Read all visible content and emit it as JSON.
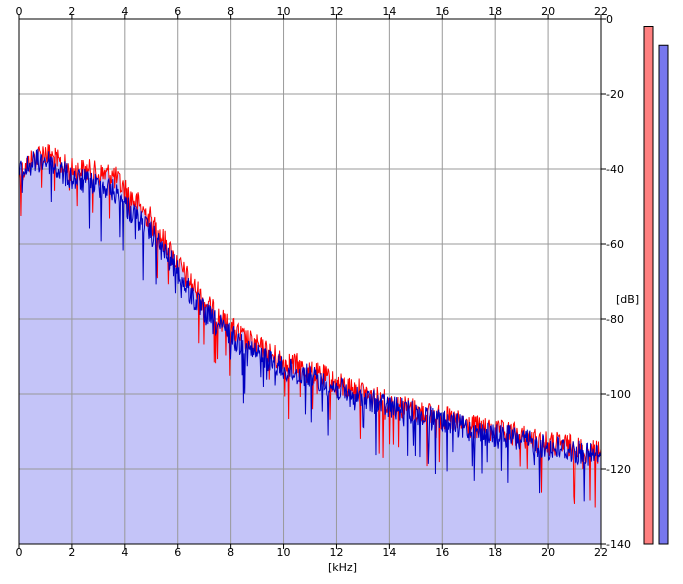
{
  "chart_data": {
    "type": "area",
    "xlabel": "[kHz]",
    "ylabel": "[dB]",
    "xlim": [
      0,
      22
    ],
    "ylim": [
      -140,
      0
    ],
    "x_ticks": [
      "0",
      "2",
      "4",
      "6",
      "8",
      "10",
      "12",
      "14",
      "16",
      "18",
      "20",
      "22"
    ],
    "y_ticks": [
      "0",
      "-20",
      "-40",
      "-60",
      "-80",
      "-100",
      "-120",
      "-140"
    ],
    "grid": true,
    "series": [
      {
        "color": "#ff0000",
        "envelope": [
          [
            0,
            -38
          ],
          [
            0.5,
            -34
          ],
          [
            1,
            -32
          ],
          [
            1.5,
            -35
          ],
          [
            2,
            -37
          ],
          [
            2.5,
            -37
          ],
          [
            3,
            -38
          ],
          [
            3.5,
            -38
          ],
          [
            4,
            -42
          ],
          [
            4.5,
            -46
          ],
          [
            5,
            -50
          ],
          [
            5.5,
            -56
          ],
          [
            6,
            -62
          ],
          [
            6.5,
            -67
          ],
          [
            7,
            -72
          ],
          [
            7.5,
            -76
          ],
          [
            8,
            -79
          ],
          [
            8.5,
            -82
          ],
          [
            9,
            -84
          ],
          [
            9.5,
            -86
          ],
          [
            10,
            -88
          ],
          [
            10.5,
            -89
          ],
          [
            11,
            -91
          ],
          [
            11.5,
            -92
          ],
          [
            12,
            -94
          ],
          [
            12.5,
            -95
          ],
          [
            13,
            -96
          ],
          [
            13.5,
            -98
          ],
          [
            14,
            -99
          ],
          [
            14.5,
            -100
          ],
          [
            15,
            -101
          ],
          [
            15.5,
            -102
          ],
          [
            16,
            -103
          ],
          [
            16.5,
            -104
          ],
          [
            17,
            -105
          ],
          [
            17.5,
            -106
          ],
          [
            18,
            -107
          ],
          [
            18.5,
            -107
          ],
          [
            19,
            -108
          ],
          [
            19.5,
            -109
          ],
          [
            20,
            -110
          ],
          [
            20.5,
            -110
          ],
          [
            21,
            -111
          ],
          [
            21.5,
            -112
          ],
          [
            22,
            -112
          ]
        ]
      },
      {
        "color": "#0000c0",
        "envelope": [
          [
            0,
            -38
          ],
          [
            0.5,
            -35
          ],
          [
            1,
            -34
          ],
          [
            1.5,
            -37
          ],
          [
            2,
            -39
          ],
          [
            2.5,
            -40
          ],
          [
            3,
            -41
          ],
          [
            3.5,
            -42
          ],
          [
            4,
            -46
          ],
          [
            4.5,
            -50
          ],
          [
            5,
            -54
          ],
          [
            5.5,
            -59
          ],
          [
            6,
            -64
          ],
          [
            6.5,
            -70
          ],
          [
            7,
            -75
          ],
          [
            7.5,
            -78
          ],
          [
            8,
            -81
          ],
          [
            8.5,
            -84
          ],
          [
            9,
            -86
          ],
          [
            9.5,
            -88
          ],
          [
            10,
            -90
          ],
          [
            10.5,
            -91
          ],
          [
            11,
            -92
          ],
          [
            11.5,
            -94
          ],
          [
            12,
            -95
          ],
          [
            12.5,
            -97
          ],
          [
            13,
            -98
          ],
          [
            13.5,
            -99
          ],
          [
            14,
            -100
          ],
          [
            14.5,
            -101
          ],
          [
            15,
            -102
          ],
          [
            15.5,
            -103
          ],
          [
            16,
            -104
          ],
          [
            16.5,
            -105
          ],
          [
            17,
            -106
          ],
          [
            17.5,
            -107
          ],
          [
            18,
            -108
          ],
          [
            18.5,
            -108
          ],
          [
            19,
            -109
          ],
          [
            19.5,
            -110
          ],
          [
            20,
            -111
          ],
          [
            20.5,
            -111
          ],
          [
            21,
            -112
          ],
          [
            21.5,
            -113
          ],
          [
            22,
            -113
          ]
        ]
      }
    ],
    "fill_color": "#c4c4f8",
    "level_meters": [
      {
        "color": "#ff8080",
        "value": -2
      },
      {
        "color": "#7777ee",
        "value": -7
      }
    ]
  }
}
